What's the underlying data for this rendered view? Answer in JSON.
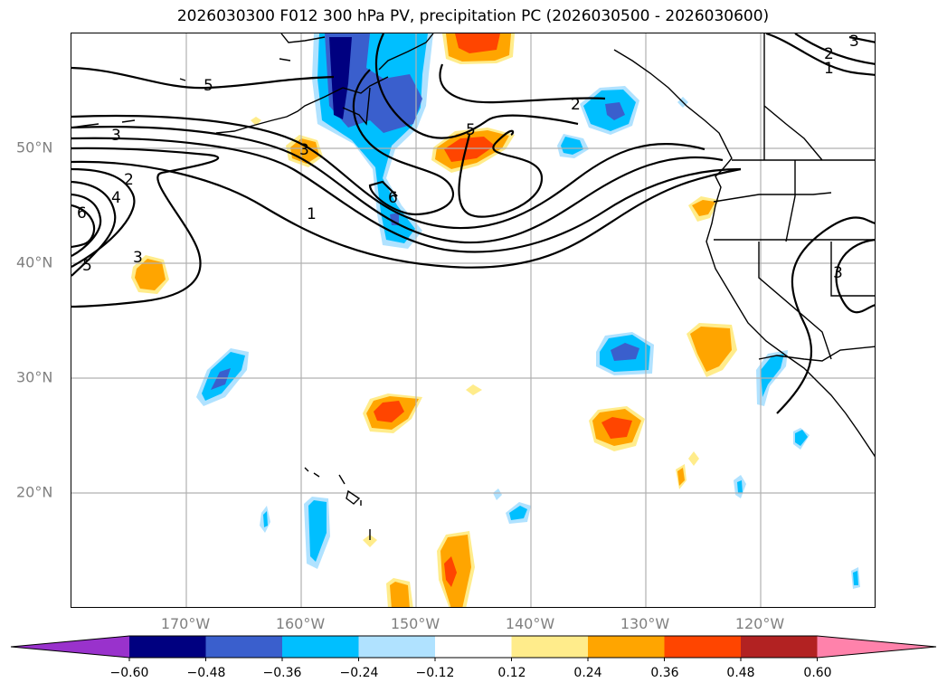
{
  "title": "2026030300 F012 300 hPa PV, precipitation PC (2026030500 - 2026030600)",
  "lat_labels": [
    "50°N",
    "40°N",
    "30°N",
    "20°N"
  ],
  "lon_labels": [
    "170°W",
    "160°W",
    "150°W",
    "140°W",
    "130°W",
    "120°W"
  ],
  "contour_labels": [
    "5",
    "3",
    "2",
    "4",
    "6",
    "5",
    "3",
    "1",
    "3",
    "6",
    "5",
    "2",
    "2",
    "1",
    "3",
    "3"
  ],
  "colorbar": {
    "ticks": [
      "−0.60",
      "−0.48",
      "−0.36",
      "−0.24",
      "−0.12",
      "0.12",
      "0.24",
      "0.36",
      "0.48",
      "0.60"
    ],
    "colors": [
      "#9932CC",
      "#000080",
      "#3A5FCD",
      "#00BFFF",
      "#B0E2FF",
      "#FFFFFF",
      "#FFEC8B",
      "#FFA500",
      "#FF4500",
      "#B22222",
      "#FF82AB"
    ]
  },
  "chart_data": {
    "type": "heatmap",
    "title": "2026030300 F012 300 hPa PV, precipitation PC (2026030500 - 2026030600)",
    "x_range_deg": [
      -180,
      -110
    ],
    "y_range_deg": [
      10,
      60
    ],
    "grid": true,
    "contour_field": "300 hPa PV",
    "contour_levels": [
      1,
      2,
      3,
      4,
      5,
      6
    ],
    "fill_field": "precipitation PC",
    "fill_levels": [
      -0.6,
      -0.48,
      -0.36,
      -0.24,
      -0.12,
      0.12,
      0.24,
      0.36,
      0.48,
      0.6
    ],
    "colorbar_placement": "bottom"
  }
}
